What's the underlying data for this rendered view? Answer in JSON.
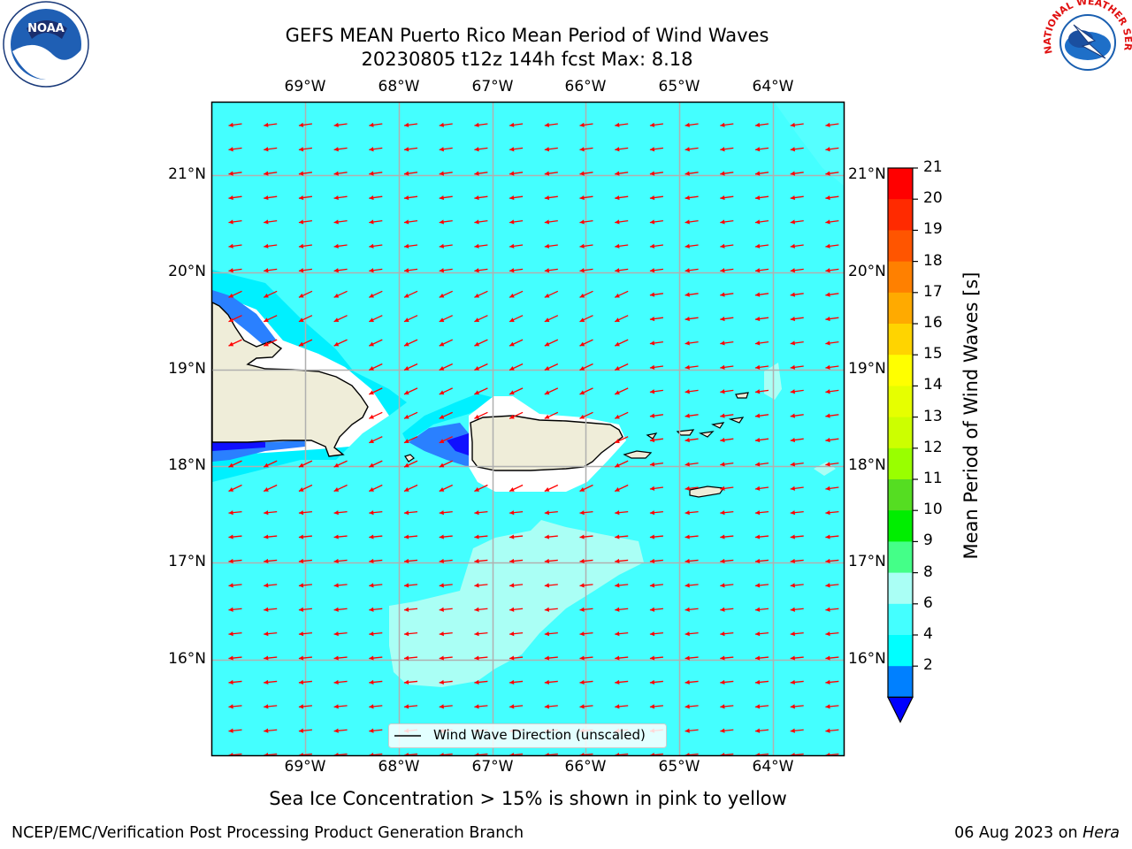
{
  "header": {
    "title_line1": "GEFS MEAN Puerto Rico Mean Period of Wind Waves",
    "title_line2": "20230805 t12z 144h fcst   Max: 8.18"
  },
  "logos": {
    "left": {
      "name": "noaa-logo",
      "text": "NOAA"
    },
    "right": {
      "name": "nws-logo",
      "text": "NATIONAL WEATHER SERVICE"
    }
  },
  "map": {
    "lon_labels": [
      "69°W",
      "68°W",
      "67°W",
      "66°W",
      "65°W",
      "64°W"
    ],
    "lat_labels": [
      "21°N",
      "20°N",
      "19°N",
      "18°N",
      "17°N",
      "16°N"
    ],
    "legend_text": "Wind Wave Direction (unscaled)",
    "colors": {
      "ocean": "#44ffff",
      "light_band": "#aafff5",
      "land": "#efedd9",
      "blue_mid": "#2a80ff",
      "blue_dark": "#1010ff",
      "cyan_bright": "#00f0ff",
      "arrow": "#ff0000",
      "grid": "#b0b0b0"
    }
  },
  "colorbar": {
    "title": "Mean Period of Wind Waves [s]",
    "ticks": [
      "21",
      "20",
      "19",
      "18",
      "17",
      "16",
      "15",
      "14",
      "13",
      "12",
      "11",
      "10",
      "9",
      "8",
      "6",
      "4",
      "2"
    ],
    "levels_colors": [
      "#ff0000",
      "#ff2a00",
      "#ff5500",
      "#ff8000",
      "#ffaa00",
      "#ffd400",
      "#ffff00",
      "#e6ff00",
      "#ccff00",
      "#99ff00",
      "#55dd22",
      "#00ee00",
      "#44ff88",
      "#aafff5",
      "#44ffff",
      "#00ffff",
      "#0080ff"
    ],
    "extend_color": "#0000ff"
  },
  "caption": "Sea Ice Concentration > 15% is shown in pink to yellow",
  "footer": {
    "left": "NCEP/EMC/Verification Post Processing Product Generation Branch",
    "right_date": "06 Aug 2023 on",
    "right_host": "Hera"
  }
}
